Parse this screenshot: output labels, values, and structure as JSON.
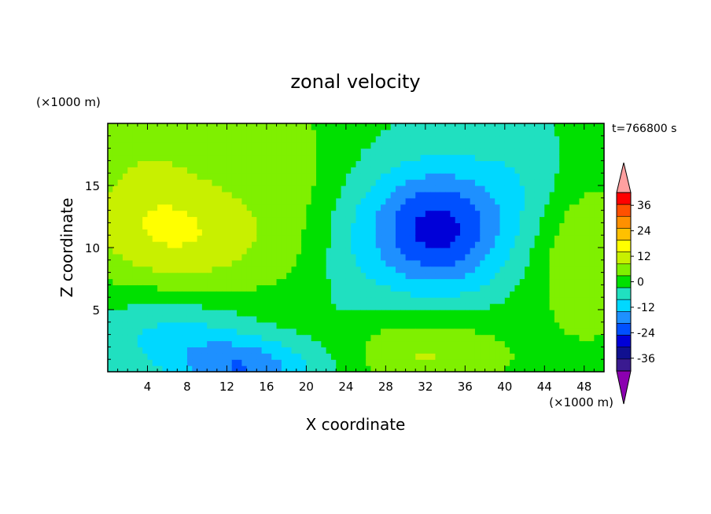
{
  "chart_data": {
    "type": "heatmap",
    "title": "zonal velocity",
    "xlabel": "X coordinate",
    "ylabel": "Z coordinate",
    "x_unit": "(×1000 m)",
    "y_unit": "(×1000 m)",
    "time_label": "t=766800 s",
    "xlim": [
      0,
      50
    ],
    "ylim": [
      0,
      20
    ],
    "x_ticks": [
      4,
      8,
      12,
      16,
      20,
      24,
      28,
      32,
      36,
      40,
      44,
      48
    ],
    "y_ticks": [
      5,
      10,
      15
    ],
    "colorbar": {
      "ticks": [
        36,
        24,
        12,
        0,
        -12,
        -24,
        -36
      ],
      "levels": [
        -42,
        -36,
        -30,
        -24,
        -18,
        -12,
        -6,
        0,
        6,
        12,
        18,
        24,
        30,
        36,
        42
      ],
      "colors": [
        "#8b00b0",
        "#3a1a90",
        "#101090",
        "#0000d8",
        "#0050ff",
        "#1e90ff",
        "#00d8ff",
        "#20e0c0",
        "#00e000",
        "#7ff000",
        "#c8f000",
        "#ffff00",
        "#ffc000",
        "#ff9000",
        "#ff5000",
        "#ff0000",
        "#ffa0a0"
      ]
    },
    "field_features": [
      {
        "kind": "peak",
        "x": 33,
        "z": 11.5,
        "value": -24,
        "note": "negative core (blue)"
      },
      {
        "kind": "peak",
        "x": 32,
        "z": 1.5,
        "value": 14,
        "note": "positive lobe (yellow)"
      },
      {
        "kind": "peak",
        "x": 7,
        "z": 11,
        "value": 14,
        "note": "positive lobe (yellow)"
      },
      {
        "kind": "peak",
        "x": 15,
        "z": 0.5,
        "value": -18,
        "note": "negative lobe near bottom"
      },
      {
        "kind": "peak",
        "x": 8,
        "z": 3,
        "value": -10,
        "note": "negative lobe"
      },
      {
        "kind": "peak",
        "x": 47,
        "z": 10,
        "value": 10,
        "note": "positive lobe right edge"
      }
    ]
  }
}
